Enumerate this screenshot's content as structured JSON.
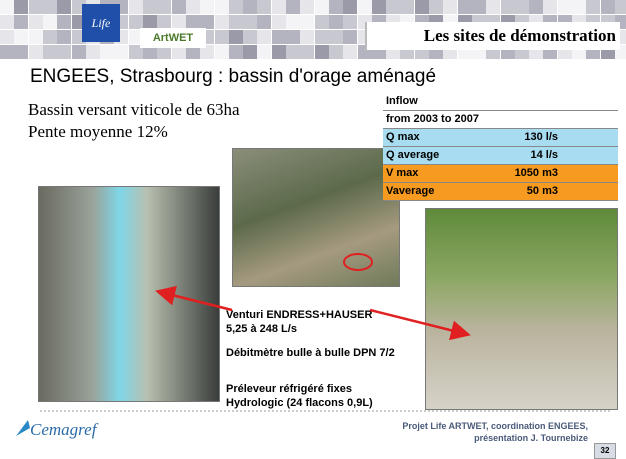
{
  "header": {
    "title": "Les sites de démonstration",
    "logos": [
      "Life",
      "ArtWET"
    ]
  },
  "subtitle": "ENGEES, Strasbourg : bassin d'orage aménagé",
  "intro": [
    "Bassin versant viticole de 63ha",
    "Pente moyenne 12%"
  ],
  "table": {
    "header": [
      "Inflow",
      "from 2003 to 2007"
    ],
    "rows": [
      [
        "Q max",
        "130 l/s"
      ],
      [
        "Q average",
        "14 l/s"
      ],
      [
        "V max",
        "1050 m3"
      ],
      [
        "Vaverage",
        "50 m3"
      ]
    ]
  },
  "annotation": [
    "Venturi ENDRESS+HAUSER",
    "5,25 à 248 L/s",
    "Débitmètre bulle à bulle DPN 7/2",
    "Préleveur réfrigéré fixes",
    "Hydrologic (24 flacons 0,9L)"
  ],
  "footer": {
    "logo": "Cemagref",
    "credit": [
      "Projet Life ARTWET, coordination ENGEES,",
      "présentation J. Tournebize"
    ],
    "page": "32"
  }
}
